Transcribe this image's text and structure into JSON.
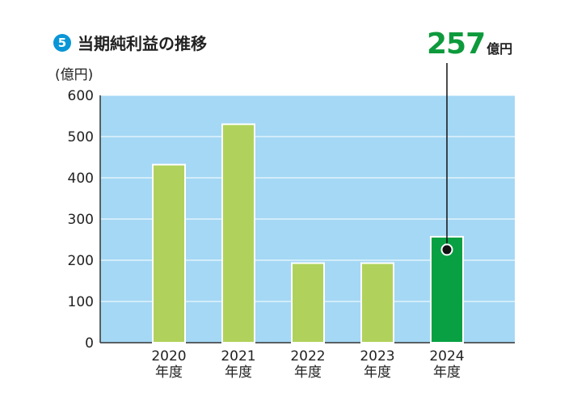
{
  "header": {
    "badge": "5",
    "title": "当期純利益の推移",
    "unit": "(億円)"
  },
  "callout": {
    "value": "257",
    "unit": "億円"
  },
  "colors": {
    "plot_bg": "#a5d8f4",
    "bar": "#b0d25c",
    "bar_highlight": "#08a043",
    "accent_text": "#0d9a3c",
    "badge": "#0a96d6"
  },
  "chart_data": {
    "type": "bar",
    "categories": [
      "2020\n年度",
      "2021\n年度",
      "2022\n年度",
      "2023\n年度",
      "2024\n年度"
    ],
    "values": [
      432,
      530,
      193,
      193,
      257
    ],
    "highlight_index": 4,
    "ylim": [
      0,
      600
    ],
    "yticks": [
      0,
      100,
      200,
      300,
      400,
      500,
      600
    ],
    "grid": true,
    "ylabel": "(億円)",
    "xlabel": "",
    "title": "当期純利益の推移"
  }
}
